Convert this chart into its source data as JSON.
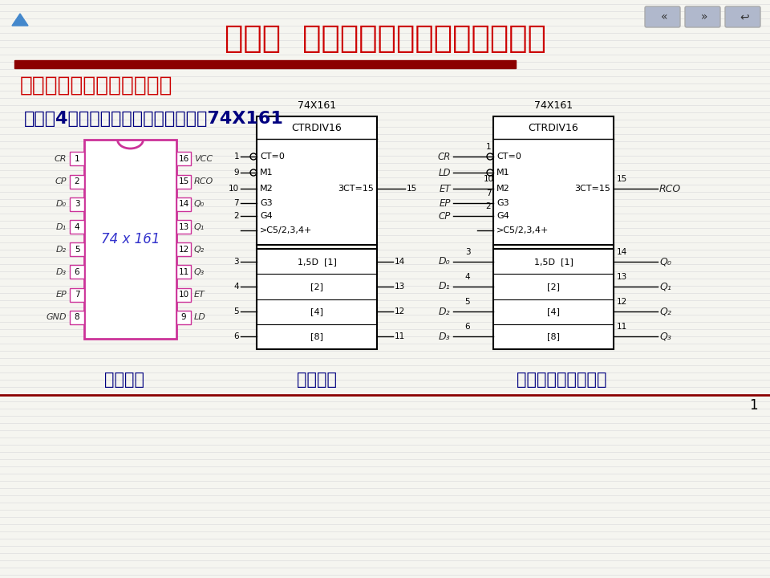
{
  "bg_color": "#f5f5f0",
  "title": "第五节  常用中规模计数器芯片及应用",
  "title_color": "#cc0000",
  "subtitle1": "一、常用中规模计数器芯片",
  "subtitle1_color": "#cc0000",
  "subtitle2": "（一）4位二进制同步加法计数器芯片74X161",
  "subtitle2_color": "#000080",
  "label1": "引脚分布",
  "label2": "逻辑符号",
  "label3": "带引脚名的逻辑符号",
  "label_color": "#000080",
  "page_num": "1",
  "ic_border_color": "#cc3399",
  "ic_text_color": "#3333cc",
  "logic_border_color": "#222222",
  "nav_color": "#b0b8cc",
  "line_red": "#8B0000",
  "stripe_color": "#e0e0e0",
  "pin_name_italic_color": "#555555"
}
